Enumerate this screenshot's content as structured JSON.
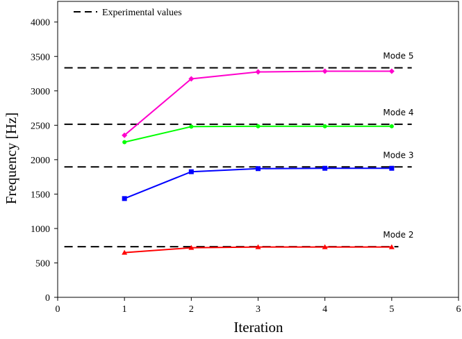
{
  "chart_data": {
    "type": "line",
    "xlabel": "Iteration",
    "ylabel": "Frequency [Hz]",
    "xlim": [
      0,
      6
    ],
    "ylim": [
      0,
      4300
    ],
    "xticks": [
      0,
      1,
      2,
      3,
      4,
      5,
      6
    ],
    "yticks": [
      0,
      500,
      1000,
      1500,
      2000,
      2500,
      3000,
      3500,
      4000
    ],
    "grid": false,
    "legend": {
      "position": "top-left",
      "entries": [
        {
          "label": "Experimental values",
          "style": "dashed",
          "color": "#000000"
        }
      ]
    },
    "x": [
      1,
      2,
      3,
      4,
      5
    ],
    "series": [
      {
        "label": "Mode 2",
        "color": "#ff0000",
        "marker": "triangle",
        "values": [
          650,
          720,
          730,
          730,
          730
        ],
        "experimental": 735,
        "exp_x_range": [
          0.1,
          5.1
        ]
      },
      {
        "label": "Mode 3",
        "color": "#0000ff",
        "marker": "square",
        "values": [
          1435,
          1825,
          1870,
          1875,
          1875
        ],
        "experimental": 1895,
        "exp_x_range": [
          0.1,
          5.3
        ]
      },
      {
        "label": "Mode 4",
        "color": "#00ff00",
        "marker": "circle",
        "values": [
          2255,
          2480,
          2485,
          2485,
          2485
        ],
        "experimental": 2515,
        "exp_x_range": [
          0.1,
          5.3
        ]
      },
      {
        "label": "Mode 5",
        "color": "#ff00cc",
        "marker": "diamond",
        "values": [
          2355,
          3175,
          3275,
          3285,
          3285
        ],
        "experimental": 3335,
        "exp_x_range": [
          0.1,
          5.3
        ]
      }
    ]
  }
}
